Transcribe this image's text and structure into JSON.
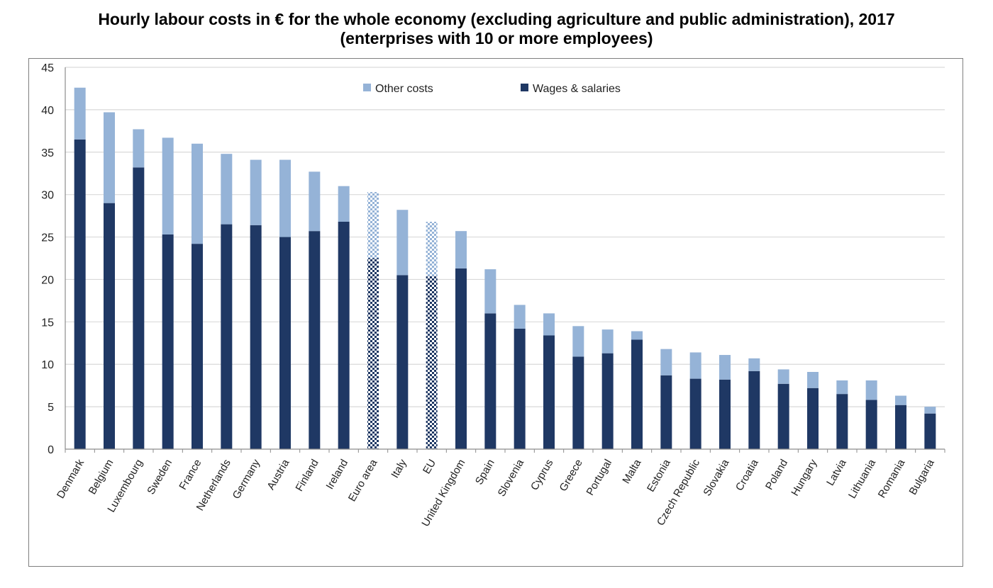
{
  "chart_data": {
    "type": "bar",
    "stacked": true,
    "title": [
      "Hourly labour costs in € for the whole economy (excluding agriculture and public administration), 2017",
      "(enterprises with 10 or more employees)"
    ],
    "xlabel": "",
    "ylabel": "",
    "ylim": [
      0,
      45
    ],
    "yticks": [
      0,
      5,
      10,
      15,
      20,
      25,
      30,
      35,
      40,
      45
    ],
    "grid": true,
    "legend_position": "top-center",
    "categories": [
      "Denmark",
      "Belgium",
      "Luxembourg",
      "Sweden",
      "France",
      "Netherlands",
      "Germany",
      "Austria",
      "Finland",
      "Ireland",
      "Euro area",
      "Italy",
      "EU",
      "United Kingdom",
      "Spain",
      "Slovenia",
      "Cyprus",
      "Greece",
      "Portugal",
      "Malta",
      "Estonia",
      "Czech Republic",
      "Slovakia",
      "Croatia",
      "Poland",
      "Hungary",
      "Latvia",
      "Lithuania",
      "Romania",
      "Bulgaria"
    ],
    "aggregates": [
      "Euro area",
      "EU"
    ],
    "series": [
      {
        "name": "Wages & salaries",
        "color": "#1f3864",
        "values": [
          36.5,
          29.0,
          33.2,
          25.3,
          24.2,
          26.5,
          26.4,
          25.0,
          25.7,
          26.8,
          22.5,
          20.5,
          20.4,
          21.3,
          16.0,
          14.2,
          13.4,
          10.9,
          11.3,
          12.9,
          8.7,
          8.3,
          8.2,
          9.2,
          7.7,
          7.2,
          6.5,
          5.8,
          5.2,
          4.2
        ]
      },
      {
        "name": "Other costs",
        "color": "#95b3d7",
        "values": [
          6.1,
          10.7,
          4.5,
          11.4,
          11.8,
          8.3,
          7.7,
          9.1,
          7.0,
          4.2,
          7.8,
          7.7,
          6.4,
          4.4,
          5.2,
          2.8,
          2.6,
          3.6,
          2.8,
          1.0,
          3.1,
          3.1,
          2.9,
          1.5,
          1.7,
          1.9,
          1.6,
          2.3,
          1.1,
          0.8
        ]
      }
    ],
    "legend_order": [
      "Other costs",
      "Wages & salaries"
    ]
  }
}
